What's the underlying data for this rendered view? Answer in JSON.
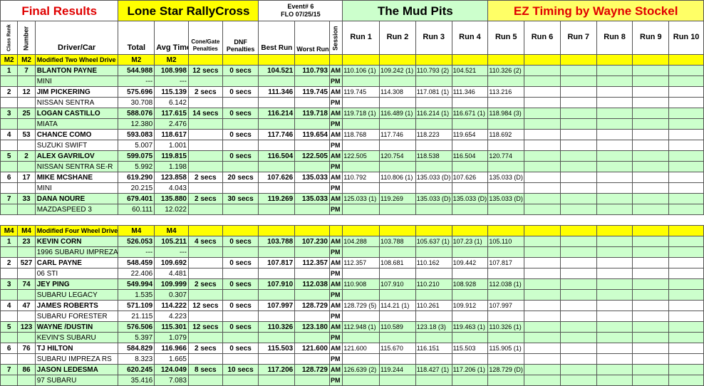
{
  "banner": {
    "final_results": "Final Results",
    "series": "Lone Star RallyCross",
    "event_line1": "Event# 6",
    "event_line2": "FLO 07/25/15",
    "venue": "The Mud Pits",
    "timing": "EZ Timing by Wayne Stockel"
  },
  "headers": {
    "class_rank": "Class Rank",
    "number": "Number",
    "driver_car": "Driver/Car",
    "total": "Total",
    "avg_time": "Avg Time",
    "cone_gate_1": "Cone/Gate",
    "cone_gate_2": "Penalties",
    "dnf_1": "DNF",
    "dnf_2": "Penalties",
    "best_run": "Best Run",
    "worst_run": "Worst Run",
    "session": "Session",
    "runs": [
      "Run 1",
      "Run 2",
      "Run 3",
      "Run 4",
      "Run 5",
      "Run 6",
      "Run 7",
      "Run 8",
      "Run 9",
      "Run 10"
    ]
  },
  "colors": {
    "banner_yellow": "#ffff00",
    "row_green": "#ccffcc",
    "title_red": "#e00000"
  },
  "classes": [
    {
      "rank_code": "M2",
      "num_code": "M2",
      "label": "Modified Two Wheel Drive",
      "total_code": "M2",
      "avg_code": "M2",
      "drivers": [
        {
          "rank": "1",
          "number": "7",
          "name": "BLANTON PAYNE",
          "car": "MINI",
          "total": "544.988",
          "avg": "108.998",
          "cone": "12 secs",
          "dnf": "0 secs",
          "best": "104.521",
          "worst": "110.793",
          "cone2": "---",
          "dnf2": "---",
          "runs": [
            "110.106 (1)",
            "109.242 (1)",
            "110.793 (2)",
            "104.521",
            "110.326 (2)",
            "",
            "",
            "",
            "",
            ""
          ]
        },
        {
          "rank": "2",
          "number": "12",
          "name": "JIM PICKERING",
          "car": "NISSAN SENTRA",
          "total": "575.696",
          "avg": "115.139",
          "cone": "2 secs",
          "dnf": "0 secs",
          "best": "111.346",
          "worst": "119.745",
          "cone2": "30.708",
          "dnf2": "6.142",
          "runs": [
            "119.745",
            "114.308",
            "117.081 (1)",
            "111.346",
            "113.216",
            "",
            "",
            "",
            "",
            ""
          ]
        },
        {
          "rank": "3",
          "number": "25",
          "name": "LOGAN CASTILLO",
          "car": "MIATA",
          "total": "588.076",
          "avg": "117.615",
          "cone": "14 secs",
          "dnf": "0 secs",
          "best": "116.214",
          "worst": "119.718",
          "cone2": "12.380",
          "dnf2": "2.476",
          "runs": [
            "119.718 (1)",
            "116.489 (1)",
            "116.214 (1)",
            "116.671 (1)",
            "118.984 (3)",
            "",
            "",
            "",
            "",
            ""
          ]
        },
        {
          "rank": "4",
          "number": "53",
          "name": "CHANCE COMO",
          "car": "SUZUKI SWIFT",
          "total": "593.083",
          "avg": "118.617",
          "cone": "",
          "dnf": "0 secs",
          "best": "117.746",
          "worst": "119.654",
          "cone2": "5.007",
          "dnf2": "1.001",
          "runs": [
            "118.768",
            "117.746",
            "118.223",
            "119.654",
            "118.692",
            "",
            "",
            "",
            "",
            ""
          ]
        },
        {
          "rank": "5",
          "number": "2",
          "name": "ALEX GAVRILOV",
          "car": "NISSAN SENTRA SE-R",
          "total": "599.075",
          "avg": "119.815",
          "cone": "",
          "dnf": "0 secs",
          "best": "116.504",
          "worst": "122.505",
          "cone2": "5.992",
          "dnf2": "1.198",
          "runs": [
            "122.505",
            "120.754",
            "118.538",
            "116.504",
            "120.774",
            "",
            "",
            "",
            "",
            ""
          ]
        },
        {
          "rank": "6",
          "number": "17",
          "name": "MIKE MCSHANE",
          "car": "MINI",
          "total": "619.290",
          "avg": "123.858",
          "cone": "2 secs",
          "dnf": "20 secs",
          "best": "107.626",
          "worst": "135.033",
          "cone2": "20.215",
          "dnf2": "4.043",
          "runs": [
            "110.792",
            "110.806 (1)",
            "135.033 (D)",
            "107.626",
            "135.033 (D)",
            "",
            "",
            "",
            "",
            ""
          ]
        },
        {
          "rank": "7",
          "number": "33",
          "name": "DANA NOURE",
          "car": "MAZDASPEED 3",
          "total": "679.401",
          "avg": "135.880",
          "cone": "2 secs",
          "dnf": "30 secs",
          "best": "119.269",
          "worst": "135.033",
          "cone2": "60.111",
          "dnf2": "12.022",
          "runs": [
            "125.033 (1)",
            "119.269",
            "135.033 (D)",
            "135.033 (D)",
            "135.033 (D)",
            "",
            "",
            "",
            "",
            ""
          ]
        }
      ]
    },
    {
      "rank_code": "M4",
      "num_code": "M4",
      "label": "Modified Four Wheel Drive",
      "total_code": "M4",
      "avg_code": "M4",
      "drivers": [
        {
          "rank": "1",
          "number": "23",
          "name": "KEVIN CORN",
          "car": "1996 SUBARU IMPREZA",
          "total": "526.053",
          "avg": "105.211",
          "cone": "4 secs",
          "dnf": "0 secs",
          "best": "103.788",
          "worst": "107.230",
          "cone2": "---",
          "dnf2": "---",
          "runs": [
            "104.288",
            "103.788",
            "105.637 (1)",
            "107.23 (1)",
            "105.110",
            "",
            "",
            "",
            "",
            ""
          ]
        },
        {
          "rank": "2",
          "number": "527",
          "name": "CARL PAYNE",
          "car": "06 STI",
          "total": "548.459",
          "avg": "109.692",
          "cone": "",
          "dnf": "0 secs",
          "best": "107.817",
          "worst": "112.357",
          "cone2": "22.406",
          "dnf2": "4.481",
          "runs": [
            "112.357",
            "108.681",
            "110.162",
            "109.442",
            "107.817",
            "",
            "",
            "",
            "",
            ""
          ]
        },
        {
          "rank": "3",
          "number": "74",
          "name": "JEY PING",
          "car": "SUBARU LEGACY",
          "total": "549.994",
          "avg": "109.999",
          "cone": "2 secs",
          "dnf": "0 secs",
          "best": "107.910",
          "worst": "112.038",
          "cone2": "1.535",
          "dnf2": "0.307",
          "runs": [
            "110.908",
            "107.910",
            "110.210",
            "108.928",
            "112.038 (1)",
            "",
            "",
            "",
            "",
            ""
          ]
        },
        {
          "rank": "4",
          "number": "47",
          "name": "JAMES ROBERTS",
          "car": "SUBARU FORESTER",
          "total": "571.109",
          "avg": "114.222",
          "cone": "12 secs",
          "dnf": "0 secs",
          "best": "107.997",
          "worst": "128.729",
          "cone2": "21.115",
          "dnf2": "4.223",
          "runs": [
            "128.729 (5)",
            "114.21 (1)",
            "110.261",
            "109.912",
            "107.997",
            "",
            "",
            "",
            "",
            ""
          ]
        },
        {
          "rank": "5",
          "number": "123",
          "name": "WAYNE /DUSTIN",
          "car": "KEVIN'S SUBARU",
          "total": "576.506",
          "avg": "115.301",
          "cone": "12 secs",
          "dnf": "0 secs",
          "best": "110.326",
          "worst": "123.180",
          "cone2": "5.397",
          "dnf2": "1.079",
          "runs": [
            "112.948 (1)",
            "110.589",
            "123.18 (3)",
            "119.463 (1)",
            "110.326 (1)",
            "",
            "",
            "",
            "",
            ""
          ]
        },
        {
          "rank": "6",
          "number": "76",
          "name": "TJ HILTON",
          "car": "SUBARU IMPREZA RS",
          "total": "584.829",
          "avg": "116.966",
          "cone": "2 secs",
          "dnf": "0 secs",
          "best": "115.503",
          "worst": "121.600",
          "cone2": "8.323",
          "dnf2": "1.665",
          "runs": [
            "121.600",
            "115.670",
            "116.151",
            "115.503",
            "115.905 (1)",
            "",
            "",
            "",
            "",
            ""
          ]
        },
        {
          "rank": "7",
          "number": "86",
          "name": "JASON LEDESMA",
          "car": "97 SUBARU",
          "total": "620.245",
          "avg": "124.049",
          "cone": "8 secs",
          "dnf": "10 secs",
          "best": "117.206",
          "worst": "128.729",
          "cone2": "35.416",
          "dnf2": "7.083",
          "runs": [
            "126.639 (2)",
            "119.244",
            "118.427 (1)",
            "117.206 (1)",
            "128.729 (D)",
            "",
            "",
            "",
            "",
            ""
          ]
        }
      ]
    }
  ],
  "session_am": "AM",
  "session_pm": "PM"
}
